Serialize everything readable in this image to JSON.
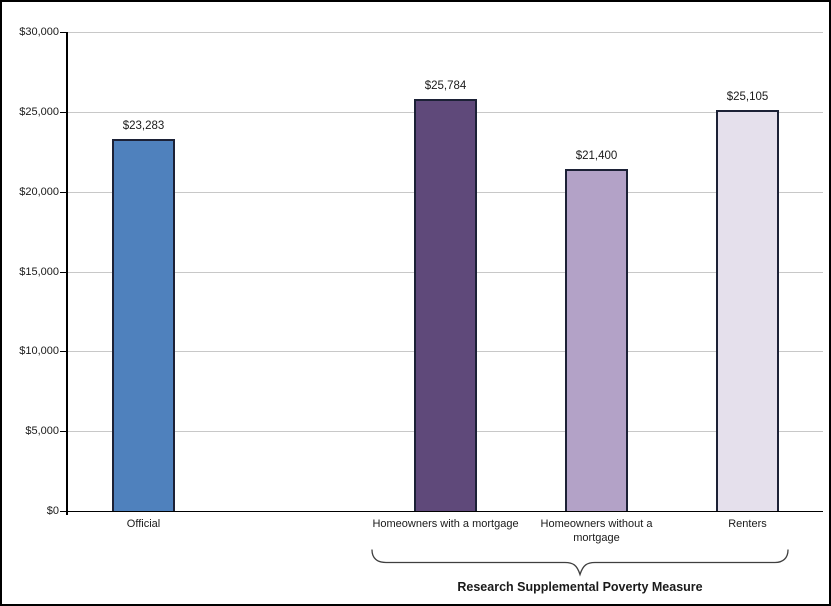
{
  "chart_data": {
    "type": "bar",
    "title": "",
    "categories": [
      "Official",
      "Homeowners with a mortgage",
      "Homeowners without a mortgage",
      "Renters"
    ],
    "values": [
      23283,
      25784,
      21400,
      25105
    ],
    "data_labels": [
      "$23,283",
      "$25,784",
      "$21,400",
      "$25,105"
    ],
    "series_colors": [
      "#4f81bd",
      "#5f497a",
      "#b3a2c7",
      "#e5e0ec"
    ],
    "bar_border_color": "#1c2136",
    "xlabel": "",
    "ylabel": "",
    "ylim": [
      0,
      30000
    ],
    "ytick_step": 5000,
    "y_tick_labels": [
      "$30,000",
      "$25,000",
      "$20,000",
      "$15,000",
      "$10,000",
      "$5,000",
      "$0"
    ],
    "grid": true,
    "legend": "none",
    "annotation": "Research Supplemental Poverty Measure",
    "annotation_scope": [
      "Homeowners with a mortgage",
      "Homeowners without a mortgage",
      "Renters"
    ]
  },
  "colors": {
    "gridline": "#c8c8c8",
    "axis": "#000000",
    "background": "#ffffff"
  }
}
